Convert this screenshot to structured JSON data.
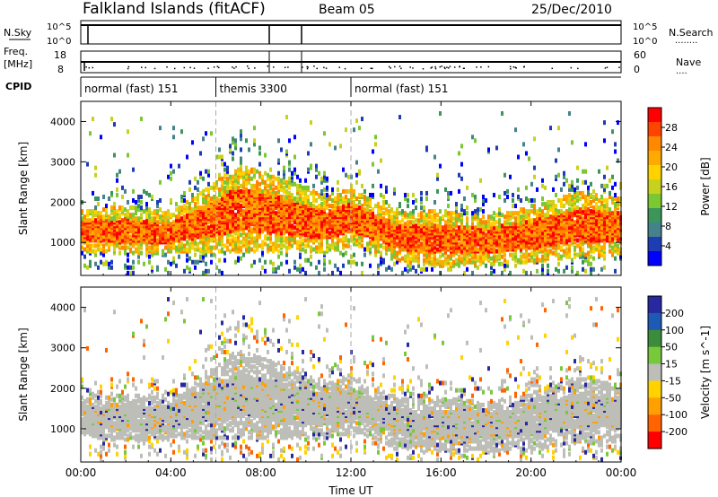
{
  "header": {
    "title": "Falkland Islands (fitACF)",
    "beam": "Beam 05",
    "date": "25/Dec/2010"
  },
  "nsky_panel": {
    "left_label": "N.Sky",
    "right_label": "N.Search",
    "right_marker": "........",
    "y_ticks": [
      "10^5",
      "10^0"
    ]
  },
  "freq_panel": {
    "left_label_line1": "Freq.",
    "left_label_line2": "[MHz]",
    "right_label": "Nave",
    "right_marker": "....",
    "left_ticks": [
      "18",
      "8"
    ],
    "right_ticks": [
      "60",
      "0"
    ]
  },
  "cpid": {
    "label": "CPID",
    "segments": [
      {
        "start_hour": 0,
        "end_hour": 6,
        "label": "normal (fast) 151"
      },
      {
        "start_hour": 6,
        "end_hour": 12,
        "label": "themis 3300"
      },
      {
        "start_hour": 12,
        "end_hour": 24,
        "label": "normal (fast) 151"
      }
    ]
  },
  "chart_data": [
    {
      "type": "heatmap",
      "name": "power-panel",
      "ylabel": "Slant Range [km]",
      "y_ticks": [
        1000,
        2000,
        3000,
        4000
      ],
      "ylim": [
        180,
        4500
      ],
      "xlim": [
        0,
        24
      ],
      "colorbar": {
        "label": "Power [dB]",
        "ticks": [
          "28",
          "24",
          "20",
          "16",
          "12",
          "8",
          "4"
        ],
        "colors": [
          "#ff0000",
          "#ff4400",
          "#ff8800",
          "#ffaa00",
          "#ffd200",
          "#c8d21e",
          "#7cc832",
          "#3c965a",
          "#46828c",
          "#1e3cb4",
          "#0000ff"
        ]
      }
    },
    {
      "type": "heatmap",
      "name": "velocity-panel",
      "ylabel": "Slant Range [km]",
      "y_ticks": [
        1000,
        2000,
        3000,
        4000
      ],
      "ylim": [
        180,
        4500
      ],
      "xlim": [
        0,
        24
      ],
      "xlabel": "Time UT",
      "x_ticks": [
        "00:00",
        "04:00",
        "08:00",
        "12:00",
        "16:00",
        "20:00",
        "00:00"
      ],
      "colorbar": {
        "label": "Velocity [m s^-1]",
        "ticks": [
          "200",
          "100",
          "50",
          "15",
          "-15",
          "-50",
          "-100",
          "-200"
        ],
        "colors": [
          "#2828a0",
          "#1e5ab4",
          "#3c8c3c",
          "#78c83c",
          "#bebeb9",
          "#ffd200",
          "#ffa000",
          "#ff6400",
          "#ff0000"
        ]
      }
    }
  ]
}
